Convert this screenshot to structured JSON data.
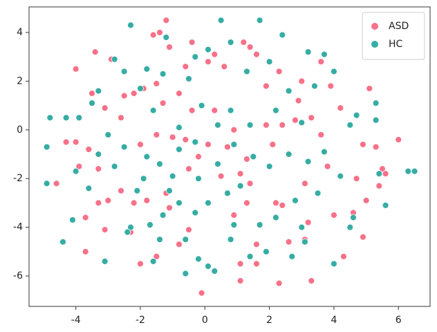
{
  "chart_data": {
    "type": "scatter",
    "xlim": [
      -5.45,
      6.98
    ],
    "ylim": [
      -7.25,
      5.05
    ],
    "xticks": [
      -4,
      -2,
      0,
      2,
      4,
      6
    ],
    "yticks": [
      -6,
      -4,
      -2,
      0,
      2,
      4
    ],
    "legend": "upper right",
    "series": [
      {
        "name": "ASD",
        "color": "#f77189",
        "x": [
          -1.2,
          -1.6,
          -1.4,
          -3.4,
          -1.1,
          -4,
          -3.5,
          -3.1,
          -2.2,
          -1.9,
          -1.5,
          -0.6,
          -0.4,
          0.1,
          0.3,
          0.6,
          1.2,
          1.4,
          1.6,
          1.9,
          2.9,
          3.0,
          3.6,
          3.9,
          5.1,
          4.2,
          3.3,
          2.4,
          1.9,
          -4.3,
          -4,
          -3.6,
          -3.9,
          -3.3,
          -4.6,
          -3.3,
          -3.0,
          -2.6,
          -2.2,
          -1.8,
          -1.2,
          -1.1,
          -0.5,
          -0.2,
          0.1,
          -1.0,
          -1.5,
          -2.0,
          -3.7,
          -3.7,
          -2.0,
          -1.5,
          -0.8,
          -0.1,
          0.9,
          1.1,
          1.1,
          1.6,
          2.3,
          3.3,
          4.3,
          4.9,
          3.1,
          2.6,
          1.6,
          1.3,
          2.2,
          2.4,
          3.1,
          3.8,
          4.7,
          5.0,
          5.5,
          5.6,
          5.4,
          6.0,
          5.3,
          4.9,
          3.6,
          2.8,
          2.1,
          1.3,
          1.1,
          0.7,
          0.3,
          -0.4,
          -0.8,
          -1.3,
          -2.6,
          -2.9,
          -2.5,
          4.6,
          4.0,
          3.2,
          1.4,
          0.5,
          -0.5,
          -2.3,
          -3.1,
          2.3,
          0.9,
          -0.6
        ],
        "values": [
          4.5,
          3.9,
          4.0,
          3.2,
          3.4,
          2.5,
          1.5,
          0.9,
          1.5,
          1.7,
          1.9,
          2.6,
          3.6,
          2.8,
          3.1,
          2.6,
          3.6,
          3.4,
          3.1,
          1.8,
          1.2,
          2.0,
          2.8,
          1.8,
          1.7,
          0.9,
          0.5,
          0.2,
          0.2,
          -0.5,
          -0.5,
          -0.8,
          -1.5,
          -1.6,
          -2.2,
          -3.0,
          -2.9,
          -2.5,
          -3.0,
          -2.9,
          -2.6,
          -3.2,
          -1.6,
          -1.1,
          -0.6,
          -0.3,
          -0.2,
          -0.6,
          -3.6,
          -5.0,
          -5.5,
          -5.2,
          -4.7,
          -6.7,
          -3.5,
          -5.5,
          -6.2,
          -5.5,
          -6.3,
          -6.2,
          -5.2,
          -4.4,
          -4.5,
          -4.6,
          -4.7,
          -3.0,
          -3.0,
          -3.1,
          -2.2,
          -1.5,
          -2.0,
          -2.9,
          -1.6,
          -1.8,
          -2.3,
          -0.4,
          -0.7,
          -0.6,
          -0.2,
          0.4,
          -0.6,
          -1.2,
          -1.8,
          -0.7,
          0.8,
          0.8,
          1.5,
          1.1,
          0.5,
          2.9,
          1.4,
          -3.4,
          -3.5,
          -3.8,
          -2.2,
          -1.9,
          -4.1,
          -4.2,
          -4.1,
          2.4,
          0.0,
          -0.4
        ]
      },
      {
        "name": "HC",
        "color": "#36ada4",
        "x": [
          -2.3,
          0.5,
          1.7,
          2.4,
          -1.2,
          -2.8,
          -2.5,
          -1.8,
          -3.3,
          -3.5,
          -3.9,
          -4.3,
          -4.8,
          -4.9,
          -4.9,
          -4.0,
          -3.6,
          -4.1,
          -4.4,
          -3.1,
          -2.3,
          -2.4,
          -1.6,
          -1.4,
          -0.6,
          -0.6,
          -0.2,
          0.1,
          0.3,
          0.8,
          1.4,
          1.9,
          2.7,
          3.0,
          3.1,
          4.0,
          4.5,
          4.6,
          5.6,
          6.3,
          6.5,
          5.4,
          5.3,
          5.3,
          4.7,
          4.5,
          4.0,
          3.7,
          3.2,
          3.4,
          2.6,
          2.0,
          1.3,
          0.8,
          0.1,
          -0.3,
          -0.5,
          -1.3,
          -2.0,
          -1.6,
          -2.5,
          -3.0,
          -3.3,
          -2.8,
          -1.9,
          -1.4,
          -0.8,
          -0.3,
          0.4,
          0.7,
          1.1,
          1.5,
          2.0,
          2.6,
          3.2,
          3.7,
          4.2,
          3.5,
          2.8,
          2.2,
          1.7,
          0.9,
          0.1,
          -0.3,
          -0.8,
          -1.3,
          -1.7,
          -2.1,
          -1.0,
          -0.2,
          0.9,
          1.4,
          0.8,
          0.4,
          -0.1,
          -0.8,
          -1.8,
          3.0,
          2.2,
          -1.1
        ],
        "values": [
          4.3,
          4.5,
          4.5,
          3.9,
          3.8,
          2.9,
          2.4,
          2.5,
          1.6,
          1.1,
          0.5,
          0.5,
          0.5,
          -0.7,
          -2.2,
          -1.7,
          -2.4,
          -3.7,
          -4.6,
          -5.4,
          -4.0,
          -4.2,
          -5.4,
          -4.5,
          -4.5,
          -5.9,
          -5.3,
          -5.6,
          -5.8,
          -4.5,
          -5.2,
          -5.0,
          -5.2,
          -4.0,
          -4.6,
          -5.5,
          -4.0,
          -3.6,
          -3.1,
          -1.7,
          -1.7,
          -1.8,
          0.4,
          1.1,
          0.6,
          0.2,
          2.4,
          3.1,
          3.2,
          1.8,
          1.6,
          2.8,
          2.4,
          3.6,
          3.3,
          3.0,
          2.1,
          2.3,
          1.7,
          0.8,
          -0.7,
          -0.2,
          -1.0,
          -1.5,
          -2.0,
          -1.4,
          -0.8,
          -0.5,
          -1.4,
          -2.6,
          -2.3,
          -1.1,
          -1.5,
          -1.0,
          -1.3,
          -0.9,
          -1.9,
          -2.6,
          -2.9,
          -3.6,
          -3.9,
          -3.9,
          -3.0,
          -3.4,
          -3.0,
          -3.5,
          -3.9,
          -2.5,
          -1.9,
          -2.0,
          -0.6,
          0.2,
          0.8,
          0.2,
          1.0,
          0.1,
          -1.1,
          0.3,
          0.8,
          -2.5
        ]
      }
    ]
  }
}
